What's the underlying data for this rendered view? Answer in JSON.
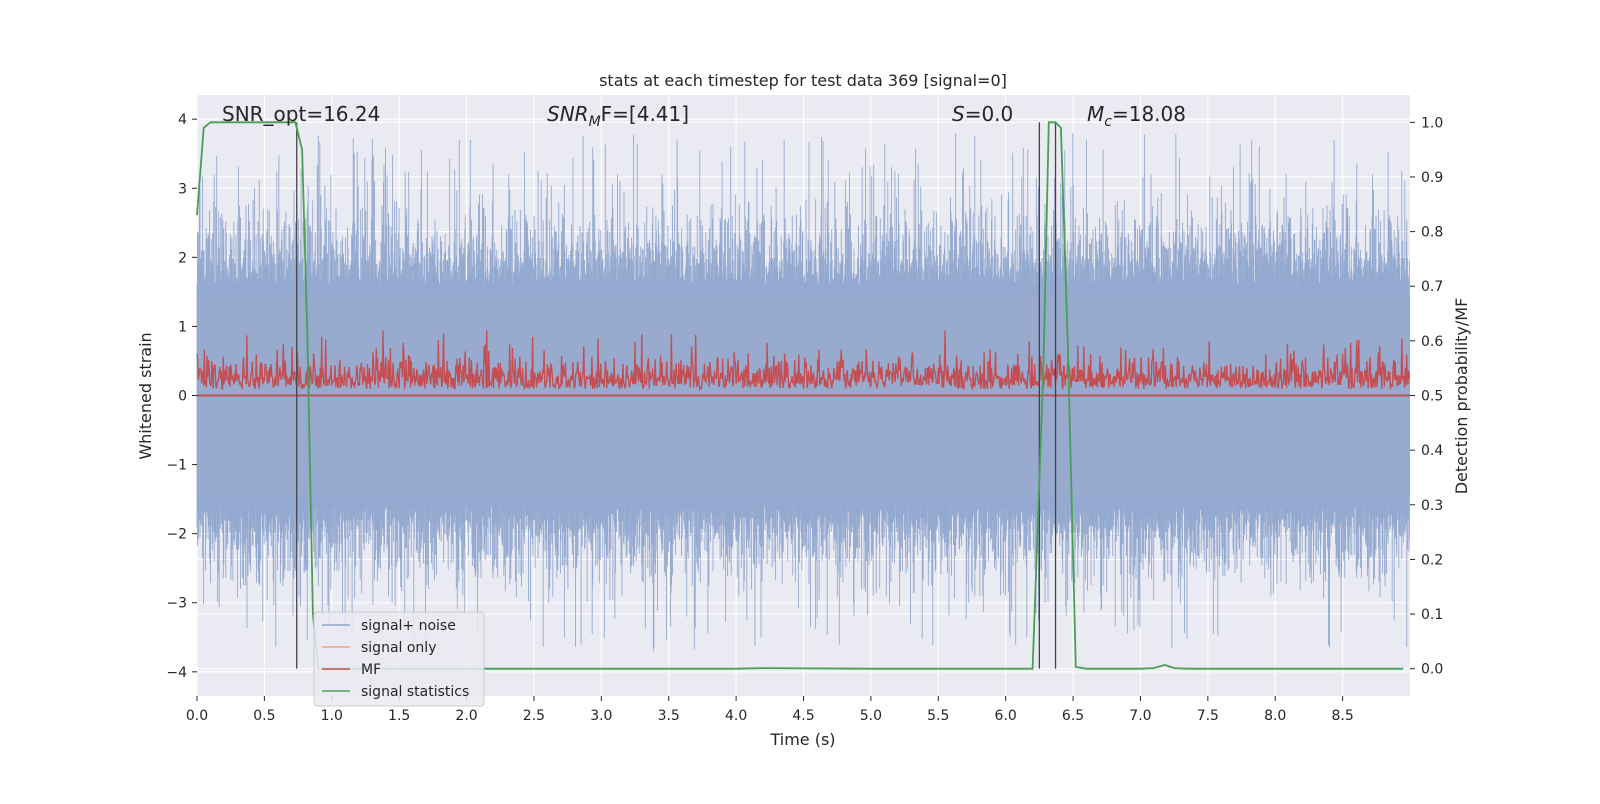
{
  "chart_data": {
    "type": "line",
    "title": "stats at each timestep for test data 369 [signal=0]",
    "xlabel": "Time (s)",
    "ylabel_left": "Whitened strain",
    "ylabel_right": "Detection probability/MF",
    "xlim": [
      0.0,
      9.0
    ],
    "ylim_left": [
      -4.35,
      4.35
    ],
    "ylim_right": [
      -0.05,
      1.05
    ],
    "x_ticks": [
      0.0,
      0.5,
      1.0,
      1.5,
      2.0,
      2.5,
      3.0,
      3.5,
      4.0,
      4.5,
      5.0,
      5.5,
      6.0,
      6.5,
      7.0,
      7.5,
      8.0,
      8.5
    ],
    "x_tick_labels": [
      "0.0",
      "0.5",
      "1.0",
      "1.5",
      "2.0",
      "2.5",
      "3.0",
      "3.5",
      "4.0",
      "4.5",
      "5.0",
      "5.5",
      "6.0",
      "6.5",
      "7.0",
      "7.5",
      "8.0",
      "8.5"
    ],
    "y_ticks_left": [
      -4,
      -3,
      -2,
      -1,
      0,
      1,
      2,
      3,
      4
    ],
    "y_tick_labels_left": [
      "−4",
      "−3",
      "−2",
      "−1",
      "0",
      "1",
      "2",
      "3",
      "4"
    ],
    "y_ticks_right": [
      0.0,
      0.1,
      0.2,
      0.3,
      0.4,
      0.5,
      0.6,
      0.7,
      0.8,
      0.9,
      1.0
    ],
    "y_tick_labels_right": [
      "0.0",
      "0.1",
      "0.2",
      "0.3",
      "0.4",
      "0.5",
      "0.6",
      "0.7",
      "0.8",
      "0.9",
      "1.0"
    ],
    "grid": true,
    "legend_position": "lower-left",
    "annotations": {
      "snr_opt": "SNR_opt=16.24",
      "snr_mf_base": "SNR",
      "snr_mf_sub": "M",
      "snr_mf_rest": "F=[4.41]",
      "s_var": "S",
      "s_rest": "=0.0",
      "mc_base": "M",
      "mc_sub": "c",
      "mc_rest": "=18.08"
    },
    "series": [
      {
        "name": "signal+ noise",
        "color": "#8fa5cd",
        "axis": "left",
        "description_level": "noise band approx ±2, peaks to about ±3.9"
      },
      {
        "name": "signal only",
        "color": "#e8a58c",
        "axis": "left",
        "values_note": "zero signal"
      },
      {
        "name": "MF",
        "color": "#c44e52",
        "axis": "right",
        "range": [
          0.5,
          0.62
        ]
      },
      {
        "name": "signal statistics",
        "color": "#4a9f55",
        "axis": "right",
        "x": [
          0.0,
          0.05,
          0.1,
          0.2,
          0.3,
          0.4,
          0.5,
          0.6,
          0.7,
          0.73,
          0.78,
          0.82,
          0.86,
          0.9,
          1.0,
          2.0,
          3.0,
          4.0,
          4.2,
          5.0,
          6.0,
          6.2,
          6.28,
          6.32,
          6.37,
          6.41,
          6.46,
          6.52,
          6.6,
          7.0,
          7.1,
          7.18,
          7.25,
          7.35,
          8.0,
          8.95
        ],
        "y": [
          0.83,
          0.99,
          1.0,
          1.0,
          1.0,
          1.0,
          1.0,
          1.0,
          1.0,
          1.0,
          0.95,
          0.6,
          0.1,
          0.0,
          0.0,
          0.0,
          0.0,
          0.0,
          0.001,
          0.0,
          0.0,
          0.0,
          0.55,
          1.0,
          1.0,
          0.99,
          0.6,
          0.003,
          0.0,
          0.0,
          0.001,
          0.007,
          0.001,
          0.0,
          0.0,
          0.0
        ]
      }
    ],
    "vertical_markers": [
      {
        "x": 0.74,
        "y_range_right": [
          0.0,
          1.0
        ]
      },
      {
        "x": 6.25,
        "y_range_right": [
          0.0,
          1.0
        ]
      },
      {
        "x": 6.37,
        "y_range_right": [
          0.0,
          1.0
        ]
      }
    ]
  }
}
